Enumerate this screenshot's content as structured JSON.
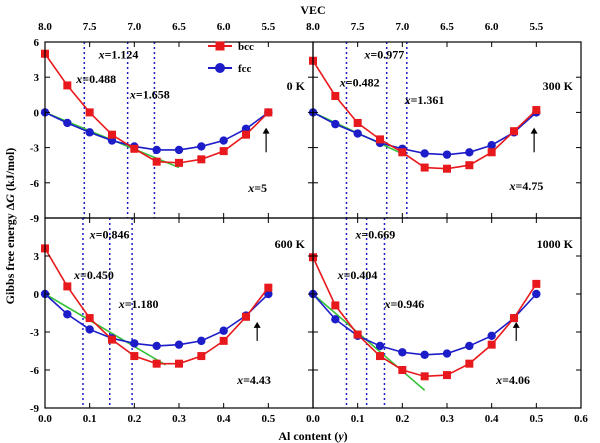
{
  "chart_data": {
    "type": "line",
    "top_axis_title": "VEC",
    "top_axis_ticks": [
      "8.0",
      "7.5",
      "7.0",
      "6.5",
      "6.0",
      "5.5"
    ],
    "top_axis_tick_x": [
      0.0,
      0.1,
      0.2,
      0.3,
      0.4,
      0.5
    ],
    "xlabel_prefix": "Al content (",
    "xlabel_var": "y",
    "xlabel_suffix": ")",
    "ylabel_prefix": "Gibbs free energy Δ",
    "ylabel_var": "G",
    "ylabel_suffix": " (kJ/mol)",
    "xlim": [
      0.0,
      0.6
    ],
    "xticks": [
      0.0,
      0.1,
      0.2,
      0.3,
      0.4,
      0.5,
      0.6
    ],
    "xtick_labels": [
      "0.0",
      "0.1",
      "0.2",
      "0.3",
      "0.4",
      "0.5",
      "0.6"
    ],
    "top_ylim": [
      -9,
      6
    ],
    "top_yticks": [
      -9,
      -6,
      -3,
      0,
      3,
      6
    ],
    "top_ytick_labels": [
      "-9",
      "-6",
      "-3",
      "0",
      "3",
      "6"
    ],
    "bottom_ylim": [
      -9,
      6
    ],
    "bottom_yticks": [
      -9,
      -6,
      -3,
      0,
      3
    ],
    "bottom_ytick_labels": [
      "-9",
      "-6",
      "-3",
      "0",
      "3"
    ],
    "legend": [
      "bcc",
      "fcc"
    ],
    "colors": {
      "bcc": "#e8191c",
      "fcc": "#1c1cc8",
      "tangent": "#36c23a",
      "vline": "#1c1cc8"
    },
    "panels": [
      {
        "temperature": "0 K",
        "x": [
          0.0,
          0.05,
          0.1,
          0.15,
          0.2,
          0.25,
          0.3,
          0.35,
          0.4,
          0.45,
          0.5
        ],
        "bcc": [
          5.0,
          2.3,
          0.0,
          -1.9,
          -3.1,
          -4.2,
          -4.3,
          -4.0,
          -3.3,
          -1.9,
          0.0
        ],
        "fcc": [
          0.0,
          -0.9,
          -1.7,
          -2.4,
          -2.9,
          -3.2,
          -3.2,
          -2.9,
          -2.4,
          -1.4,
          0.0
        ],
        "tangent": [
          [
            0.0,
            0.0
          ],
          [
            0.3,
            -4.7
          ]
        ],
        "vlines": [
          0.088,
          0.185,
          0.245
        ],
        "labels": [
          {
            "prefix": "x",
            "value": "=1.124",
            "x": 0.12,
            "y": 4.6
          },
          {
            "prefix": "x",
            "value": "=0.488",
            "x": 0.07,
            "y": 2.5
          },
          {
            "prefix": "x",
            "value": "=1.658",
            "x": 0.19,
            "y": 1.2
          },
          {
            "prefix": "x",
            "value": "=5",
            "x": 0.455,
            "y": -6.8
          }
        ]
      },
      {
        "temperature": "300 K",
        "x": [
          0.0,
          0.05,
          0.1,
          0.15,
          0.2,
          0.25,
          0.3,
          0.35,
          0.4,
          0.45,
          0.5
        ],
        "bcc": [
          4.4,
          1.4,
          -0.9,
          -2.3,
          -3.4,
          -4.7,
          -4.8,
          -4.5,
          -3.4,
          -1.6,
          0.2
        ],
        "fcc": [
          0.0,
          -1.0,
          -1.8,
          -2.6,
          -3.1,
          -3.5,
          -3.6,
          -3.4,
          -2.8,
          -1.7,
          0.0
        ],
        "tangent": [
          [
            0.0,
            0.0
          ],
          [
            0.21,
            -3.7
          ]
        ],
        "vlines": [
          0.075,
          0.165,
          0.21
        ],
        "labels": [
          {
            "prefix": "x",
            "value": "=0.977",
            "x": 0.115,
            "y": 4.6
          },
          {
            "prefix": "x",
            "value": "=0.482",
            "x": 0.06,
            "y": 2.2
          },
          {
            "prefix": "x",
            "value": "=1.361",
            "x": 0.205,
            "y": 0.7
          },
          {
            "prefix": "x",
            "value": "=4.75",
            "x": 0.44,
            "y": -6.6
          }
        ]
      },
      {
        "temperature": "600 K",
        "x": [
          0.0,
          0.05,
          0.1,
          0.15,
          0.2,
          0.25,
          0.3,
          0.35,
          0.4,
          0.45,
          0.5
        ],
        "bcc": [
          3.6,
          0.6,
          -1.9,
          -3.6,
          -4.9,
          -5.5,
          -5.5,
          -4.9,
          -3.7,
          -1.8,
          0.5
        ],
        "fcc": [
          0.0,
          -1.6,
          -2.8,
          -3.5,
          -3.9,
          -4.1,
          -4.0,
          -3.7,
          -2.9,
          -1.7,
          0.0
        ],
        "tangent": [
          [
            0.0,
            0.0
          ],
          [
            0.27,
            -5.6
          ]
        ],
        "vlines": [
          0.085,
          0.145,
          0.195
        ],
        "labels": [
          {
            "prefix": "x",
            "value": "=0.846",
            "x": 0.1,
            "y": 4.4
          },
          {
            "prefix": "x",
            "value": "=0.450",
            "x": 0.065,
            "y": 1.2
          },
          {
            "prefix": "x",
            "value": "=1.180",
            "x": 0.165,
            "y": -1.1
          },
          {
            "prefix": "x",
            "value": "=4.43",
            "x": 0.43,
            "y": -7.1
          }
        ]
      },
      {
        "temperature": "1000 K",
        "x": [
          0.0,
          0.05,
          0.1,
          0.15,
          0.2,
          0.25,
          0.3,
          0.35,
          0.4,
          0.45,
          0.5
        ],
        "bcc": [
          2.9,
          -0.9,
          -3.2,
          -4.9,
          -6.0,
          -6.5,
          -6.4,
          -5.5,
          -4.0,
          -1.9,
          0.8
        ],
        "fcc": [
          0.0,
          -2.0,
          -3.3,
          -4.1,
          -4.6,
          -4.8,
          -4.7,
          -4.1,
          -3.3,
          -1.9,
          0.0
        ],
        "tangent": [
          [
            0.0,
            0.0
          ],
          [
            0.25,
            -7.6
          ]
        ],
        "vlines": [
          0.075,
          0.12,
          0.16
        ],
        "labels": [
          {
            "prefix": "x",
            "value": "=0.669",
            "x": 0.095,
            "y": 4.4
          },
          {
            "prefix": "x",
            "value": "=0.404",
            "x": 0.055,
            "y": 1.2
          },
          {
            "prefix": "x",
            "value": "=0.946",
            "x": 0.16,
            "y": -1.1
          },
          {
            "prefix": "x",
            "value": "=4.06",
            "x": 0.41,
            "y": -7.1
          }
        ]
      }
    ]
  }
}
